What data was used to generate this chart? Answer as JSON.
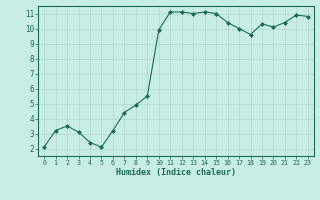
{
  "x": [
    0,
    1,
    2,
    3,
    4,
    5,
    6,
    7,
    8,
    9,
    10,
    11,
    12,
    13,
    14,
    15,
    16,
    17,
    18,
    19,
    20,
    21,
    22,
    23
  ],
  "y": [
    2.1,
    3.2,
    3.5,
    3.1,
    2.4,
    2.1,
    3.2,
    4.4,
    4.9,
    5.5,
    9.9,
    11.1,
    11.1,
    11.0,
    11.1,
    11.0,
    10.4,
    10.0,
    9.6,
    10.3,
    10.1,
    10.4,
    10.9,
    10.8
  ],
  "xlim": [
    -0.5,
    23.5
  ],
  "ylim": [
    1.5,
    11.5
  ],
  "yticks": [
    2,
    3,
    4,
    5,
    6,
    7,
    8,
    9,
    10,
    11
  ],
  "xticks": [
    0,
    1,
    2,
    3,
    4,
    5,
    6,
    7,
    8,
    9,
    10,
    11,
    12,
    13,
    14,
    15,
    16,
    17,
    18,
    19,
    20,
    21,
    22,
    23
  ],
  "xlabel": "Humidex (Indice chaleur)",
  "line_color": "#1a6b5a",
  "marker": "D",
  "marker_size": 2.0,
  "bg_color": "#c8ece6",
  "grid_color": "#b0d8d0",
  "spine_color": "#1a6b5a"
}
